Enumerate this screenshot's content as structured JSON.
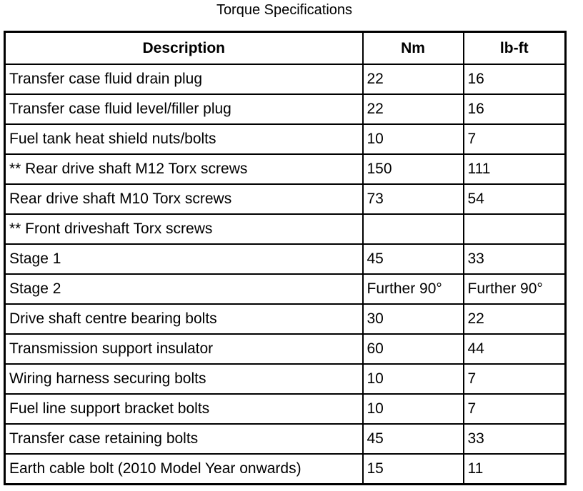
{
  "title": "Torque Specifications",
  "table": {
    "headers": [
      "Description",
      "Nm",
      "lb-ft"
    ],
    "rows": [
      [
        "Transfer case fluid drain plug",
        "22",
        "16"
      ],
      [
        "Transfer case fluid level/filler plug",
        "22",
        "16"
      ],
      [
        "Fuel tank heat shield nuts/bolts",
        "10",
        "7"
      ],
      [
        "** Rear drive shaft M12 Torx screws",
        "150",
        "111"
      ],
      [
        "Rear drive shaft M10 Torx screws",
        "73",
        "54"
      ],
      [
        "** Front driveshaft Torx screws",
        "",
        ""
      ],
      [
        "Stage 1",
        "45",
        "33"
      ],
      [
        "Stage 2",
        "Further 90°",
        "Further 90°"
      ],
      [
        "Drive shaft centre bearing bolts",
        "30",
        "22"
      ],
      [
        "Transmission support insulator",
        "60",
        "44"
      ],
      [
        "Wiring harness securing bolts",
        "10",
        "7"
      ],
      [
        "Fuel line support bracket bolts",
        "10",
        "7"
      ],
      [
        "Transfer case retaining bolts",
        "45",
        "33"
      ],
      [
        "Earth cable bolt (2010 Model Year onwards)",
        "15",
        "11"
      ]
    ]
  }
}
